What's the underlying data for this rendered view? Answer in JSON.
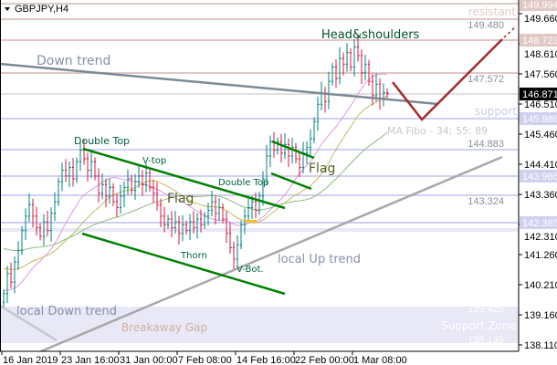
{
  "chart_data": {
    "type": "candlestick",
    "title": "GBPJPY,H4",
    "symbol": "GBPJPY",
    "timeframe": "H4",
    "ylim": [
      137.9,
      150.1
    ],
    "y_ticks": [
      "149.660",
      "148.610",
      "147.560",
      "146.510",
      "145.460",
      "144.410",
      "143.360",
      "142.310",
      "141.260",
      "140.210",
      "139.160",
      "138.110"
    ],
    "x_ticks": [
      "16 Jan 2019",
      "23 Jan 16:00",
      "31 Jan 00:00",
      "7 Feb 08:00",
      "14 Feb 16:00",
      "22 Feb 00:00",
      "1 Mar 08:00"
    ],
    "closes": [
      139.9,
      140.6,
      140.3,
      141.0,
      141.4,
      142.1,
      142.6,
      143.0,
      142.6,
      142.2,
      141.9,
      142.4,
      142.1,
      142.7,
      143.1,
      143.8,
      144.2,
      144.0,
      144.3,
      143.9,
      144.5,
      144.9,
      144.6,
      144.2,
      144.5,
      144.0,
      143.4,
      143.7,
      143.3,
      143.6,
      143.1,
      142.9,
      143.3,
      143.6,
      143.9,
      143.5,
      143.8,
      144.0,
      143.7,
      144.1,
      143.6,
      143.4,
      143.0,
      142.6,
      142.3,
      142.5,
      142.2,
      142.4,
      142.0,
      142.3,
      142.1,
      142.4,
      142.2,
      142.5,
      142.3,
      142.6,
      142.8,
      143.1,
      142.7,
      142.9,
      142.5,
      142.0,
      141.5,
      141.1,
      141.6,
      142.3,
      142.6,
      142.9,
      143.1,
      142.8,
      143.3,
      143.9,
      144.7,
      145.2,
      144.9,
      145.2,
      144.8,
      145.1,
      144.7,
      145.0,
      144.6,
      144.3,
      144.8,
      145.0,
      145.3,
      145.9,
      146.5,
      146.9,
      146.6,
      147.3,
      147.8,
      147.4,
      148.1,
      147.9,
      148.3,
      147.8,
      148.5,
      148.2,
      147.6,
      147.9,
      147.3,
      146.8,
      147.2,
      146.7,
      146.9,
      146.871
    ],
    "current_price": "146.871",
    "resistance_levels": [
      "149.994",
      "149.480",
      "148.723",
      "147.572"
    ],
    "support_levels": [
      "145.986",
      "144.883",
      "143.986",
      "143.324",
      "142.385"
    ],
    "support_zone": {
      "top": "139.425",
      "bottom": "138.135",
      "label": "Support Zone"
    },
    "tagged_levels": [
      "149.994",
      "148.723",
      "145.986",
      "143.986",
      "142.385"
    ],
    "ma_label": "MA Fibo - 34; 55; 89",
    "colors": {
      "up": "#008080",
      "down": "#dc143c",
      "resistance": "#e0c8c4",
      "support": "#d0d0f0",
      "pattern": "#008000",
      "trend": "#a0a0a0",
      "projection": "#a52a2a",
      "ma34": "#dd99dd",
      "ma55": "#c8b860",
      "ma89": "#8cb87c"
    },
    "annotations": {
      "down_trend": "Down trend",
      "head_shoulders": "Head&shoulders",
      "double_top_1": "Double Top",
      "v_top": "V-top",
      "flag_1": "Flag",
      "double_top_2": "Double Top",
      "flag_2": "Flag",
      "thorn": "Thorn",
      "v_bot": "V-Bot.",
      "local_up_trend": "local Up trend",
      "local_down_trend": "local Down trend",
      "breakaway_gap": "Breakaway Gap",
      "resistant": "resistant",
      "support": "support"
    }
  }
}
